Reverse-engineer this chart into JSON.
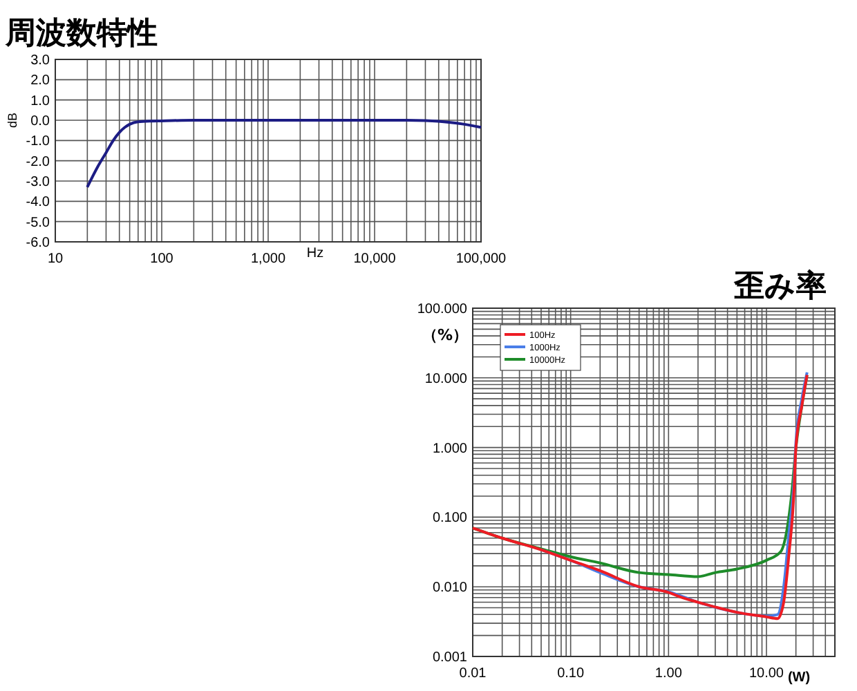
{
  "chart_data": [
    {
      "type": "line",
      "title": "周波数特性",
      "xlabel": "Hz",
      "ylabel": "dB",
      "log": "x",
      "grid": true,
      "legend": false,
      "line_style": "solid",
      "xlim": [
        10,
        100000
      ],
      "xticks": [
        10,
        100,
        {
          "value": 1000,
          "label": "1,000"
        },
        {
          "value": 10000,
          "label": "10,000"
        },
        {
          "value": 100000,
          "label": "100,000"
        }
      ],
      "ylim": [
        -6,
        3
      ],
      "yticks": [
        {
          "value": -6,
          "label": "-6.0"
        },
        {
          "value": -5,
          "label": "-5.0"
        },
        {
          "value": -4,
          "label": "-4.0"
        },
        {
          "value": -3,
          "label": "-3.0"
        },
        {
          "value": -2,
          "label": "-2.0"
        },
        {
          "value": -1,
          "label": "-1.0"
        },
        {
          "value": 0,
          "label": "0.0"
        },
        {
          "value": 1,
          "label": "1.0"
        },
        {
          "value": 2,
          "label": "2.0"
        },
        {
          "value": 3,
          "label": "3.0"
        }
      ],
      "series": [
        {
          "color": "#1c1c84",
          "x": [
            20,
            25,
            30,
            35,
            40,
            45,
            50,
            60,
            80,
            100,
            200,
            1000,
            10000,
            20000,
            30000,
            50000,
            70000,
            100000
          ],
          "values": [
            -3.3,
            -2.3,
            -1.6,
            -1.0,
            -0.6,
            -0.35,
            -0.2,
            -0.08,
            -0.04,
            -0.03,
            0,
            0,
            0,
            0,
            -0.02,
            -0.1,
            -0.2,
            -0.35
          ]
        }
      ]
    },
    {
      "type": "line",
      "title": "歪み率",
      "xlabel": "(W)",
      "ylabel": "（%）",
      "log": "xy",
      "grid": true,
      "legend": "top left",
      "line_style": "solid",
      "xlim": [
        0.01,
        50
      ],
      "xticks": [
        0.01,
        {
          "value": 0.1,
          "label": "0.10"
        },
        {
          "value": 1,
          "label": "1.00"
        },
        {
          "value": 10,
          "label": "10.00"
        }
      ],
      "ylim": [
        0.001,
        100
      ],
      "yticks": [
        0.001,
        {
          "value": 0.01,
          "label": "0.010"
        },
        {
          "value": 0.1,
          "label": "0.100"
        },
        {
          "value": 1,
          "label": "1.000"
        },
        {
          "value": 10,
          "label": "10.000"
        },
        {
          "value": 100,
          "label": "100.000"
        }
      ],
      "series": [
        {
          "name": "100Hz",
          "color": "#ee1c24",
          "x": [
            0.01,
            0.02,
            0.05,
            0.1,
            0.2,
            0.5,
            1,
            1.3,
            2,
            3.2,
            5,
            10,
            13,
            15,
            17,
            19,
            20,
            23,
            26
          ],
          "values": [
            0.07,
            0.05,
            0.034,
            0.024,
            0.017,
            0.01,
            0.0083,
            0.0072,
            0.006,
            0.005,
            0.0043,
            0.0037,
            0.0035,
            0.006,
            0.03,
            0.2,
            1,
            4,
            11
          ]
        },
        {
          "name": "1000Hz",
          "color": "#4a7ee8",
          "x": [
            0.05,
            0.1,
            0.2,
            0.5,
            1,
            2,
            5,
            10,
            13,
            15,
            17,
            19,
            20,
            23,
            26
          ],
          "values": [
            0.034,
            0.024,
            0.016,
            0.01,
            0.0085,
            0.006,
            0.0043,
            0.0038,
            0.004,
            0.01,
            0.06,
            0.3,
            1.2,
            5,
            12
          ]
        },
        {
          "name": "10000Hz",
          "color": "#1e8c2a",
          "x": [
            0.01,
            0.02,
            0.05,
            0.1,
            0.2,
            0.5,
            1,
            2,
            3,
            5,
            10,
            14,
            16,
            18,
            20,
            23,
            26
          ],
          "values": [
            0.07,
            0.05,
            0.035,
            0.027,
            0.022,
            0.016,
            0.015,
            0.014,
            0.016,
            0.018,
            0.024,
            0.032,
            0.06,
            0.2,
            1,
            4,
            11
          ]
        }
      ]
    }
  ]
}
